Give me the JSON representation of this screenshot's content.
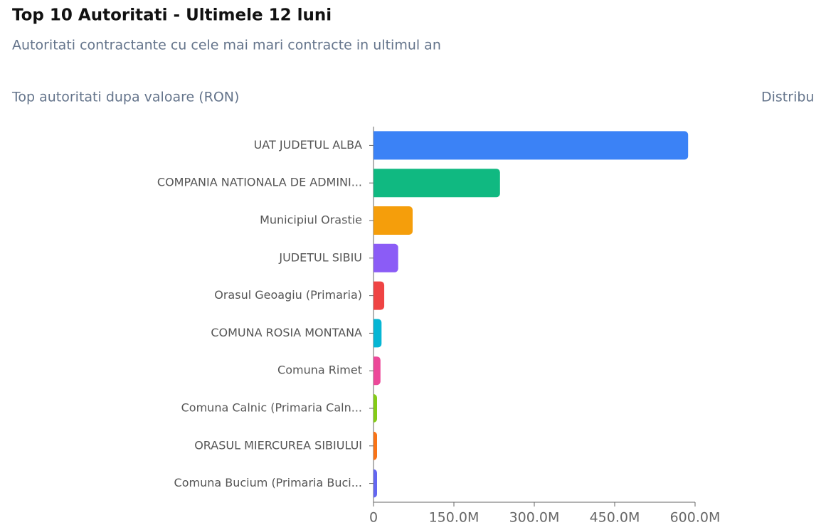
{
  "header": {
    "title": "Top 10 Autoritati - Ultimele 12 luni",
    "subtitle": "Autoritati contractante cu cele mai mari contracte in ultimul an"
  },
  "next_panel_title": "Distribu",
  "chart_data": {
    "type": "bar",
    "orientation": "horizontal",
    "title": "Top autoritati dupa valoare (RON)",
    "categories": [
      "UAT JUDETUL ALBA",
      "COMPANIA NATIONALA DE ADMINI...",
      "Municipiul Orastie",
      "JUDETUL SIBIU",
      "Orasul Geoagiu (Primaria)",
      "COMUNA ROSIA MONTANA",
      "Comuna Rimet",
      "Comuna Calnic (Primaria Caln...",
      "ORASUL MIERCUREA SIBIULUI",
      "Comuna Bucium (Primaria Buci..."
    ],
    "values": [
      587000000,
      236000000,
      73000000,
      46000000,
      20000000,
      15000000,
      13000000,
      4000000,
      3000000,
      2500000
    ],
    "colors": [
      "#3b82f6",
      "#10b981",
      "#f59e0b",
      "#8b5cf6",
      "#ef4444",
      "#06b6d4",
      "#ec4899",
      "#84cc16",
      "#f97316",
      "#6366f1"
    ],
    "xlim": [
      0,
      600000000
    ],
    "xticks": [
      0,
      {
        "value": 150000000,
        "label": "150.0M"
      },
      {
        "value": 300000000,
        "label": "300.0M"
      },
      {
        "value": 450000000,
        "label": "450.0M"
      },
      {
        "value": 600000000,
        "label": "600.0M"
      }
    ]
  }
}
